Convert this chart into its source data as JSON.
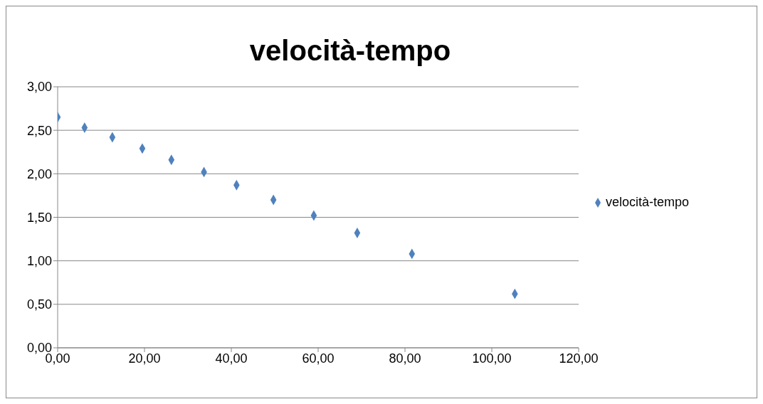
{
  "chart_data": {
    "type": "scatter",
    "title": "velocità-tempo",
    "x": [
      0,
      6.2,
      12.6,
      19.5,
      26.2,
      33.7,
      41.2,
      49.7,
      59.0,
      69.0,
      81.6,
      105.3
    ],
    "series": [
      {
        "name": "velocità-tempo",
        "color": "#4f81bd",
        "values": [
          2.65,
          2.53,
          2.42,
          2.29,
          2.16,
          2.02,
          1.87,
          1.7,
          1.52,
          1.32,
          1.08,
          0.62
        ]
      }
    ],
    "xlim": [
      0,
      120
    ],
    "xticks": [
      {
        "value": 0,
        "label": "0,00"
      },
      {
        "value": 20,
        "label": "20,00"
      },
      {
        "value": 40,
        "label": "40,00"
      },
      {
        "value": 60,
        "label": "60,00"
      },
      {
        "value": 80,
        "label": "80,00"
      },
      {
        "value": 100,
        "label": "100,00"
      },
      {
        "value": 120,
        "label": "120,00"
      }
    ],
    "ylim": [
      0,
      3
    ],
    "yticks": [
      {
        "value": 0,
        "label": "0,00"
      },
      {
        "value": 0.5,
        "label": "0,50"
      },
      {
        "value": 1,
        "label": "1,00"
      },
      {
        "value": 1.5,
        "label": "1,50"
      },
      {
        "value": 2,
        "label": "2,00"
      },
      {
        "value": 2.5,
        "label": "2,50"
      },
      {
        "value": 3,
        "label": "3,00"
      }
    ],
    "grid": "y",
    "legend": "right",
    "marker": "diamond"
  }
}
